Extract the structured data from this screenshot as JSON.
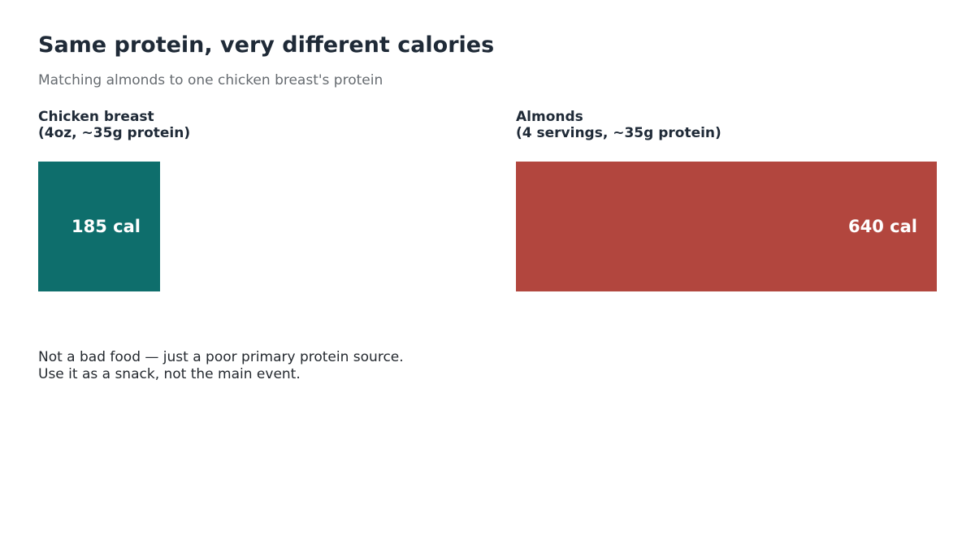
{
  "chart_data": {
    "type": "bar",
    "title": "Same protein, very different calories",
    "subtitle": "Matching almonds to one chicken breast's protein",
    "unit": "cal",
    "scale_max": 640,
    "panels": [
      {
        "name_line1": "Chicken breast",
        "name_line2": "(4oz, ~35g protein)",
        "value": 185,
        "value_label": "185 cal",
        "color": "#0e6e6c"
      },
      {
        "name_line1": "Almonds",
        "name_line2": "(4 servings, ~35g protein)",
        "value": 640,
        "value_label": "640 cal",
        "color": "#b2463e"
      }
    ],
    "note_line1": "Not a bad food — just a poor primary protein source.",
    "note_line2": "Use it as a snack, not the main event."
  }
}
